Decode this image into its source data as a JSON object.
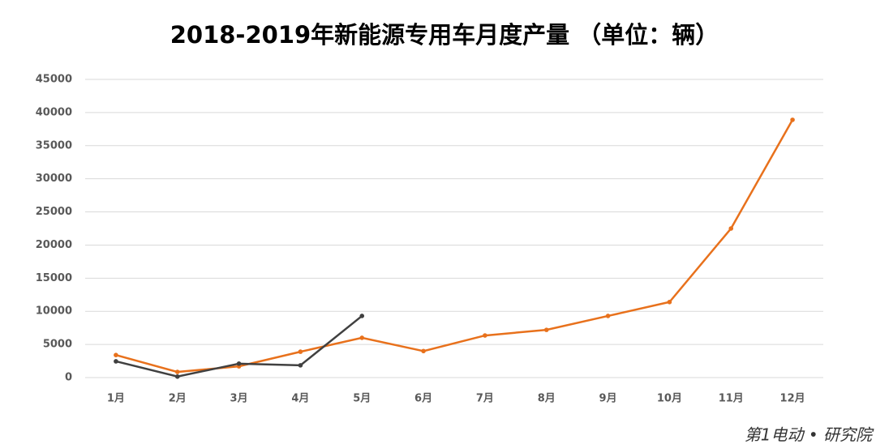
{
  "chart_data": {
    "type": "line",
    "title": "2018-2019年新能源专用车月度产量 （单位：辆）",
    "watermark": "第1电动 • 研究院",
    "categories": [
      "1月",
      "2月",
      "3月",
      "4月",
      "5月",
      "6月",
      "7月",
      "8月",
      "9月",
      "10月",
      "11月",
      "12月"
    ],
    "series": [
      {
        "color": "#e8711c",
        "values": [
          3400,
          850,
          1700,
          3900,
          6000,
          4000,
          6350,
          7200,
          9300,
          11400,
          22500,
          38900
        ]
      },
      {
        "color": "#404040",
        "values": [
          2450,
          150,
          2100,
          1850,
          9300,
          null,
          null,
          null,
          null,
          null,
          null,
          null
        ]
      }
    ],
    "ylim": [
      0,
      45000
    ],
    "yticks": [
      0,
      5000,
      10000,
      15000,
      20000,
      25000,
      30000,
      35000,
      40000,
      45000
    ],
    "grid": true
  }
}
